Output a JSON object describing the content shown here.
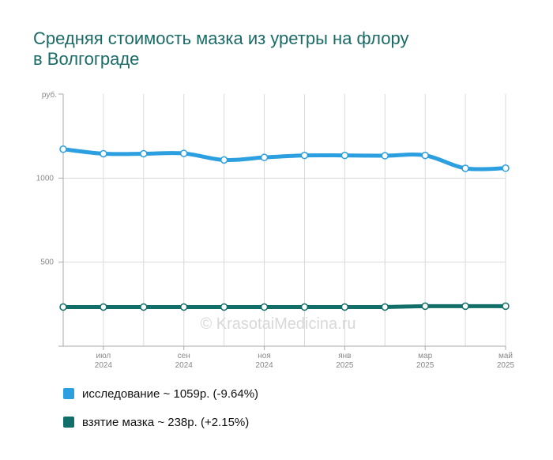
{
  "chart_data": {
    "type": "line",
    "title_lines": [
      "Средняя стоимость мазка из уретры на флору",
      "в Волгограде"
    ],
    "ylabel": "руб.",
    "ylim": [
      0,
      1500
    ],
    "yticks": [
      500,
      1000
    ],
    "grid": true,
    "legend_position": "bottom-left",
    "x_ticks": [
      {
        "index": 1,
        "month": "июл",
        "year": "2024"
      },
      {
        "index": 3,
        "month": "сен",
        "year": "2024"
      },
      {
        "index": 5,
        "month": "ноя",
        "year": "2024"
      },
      {
        "index": 7,
        "month": "янв",
        "year": "2025"
      },
      {
        "index": 9,
        "month": "мар",
        "year": "2025"
      },
      {
        "index": 11,
        "month": "май",
        "year": "2025"
      }
    ],
    "point_count": 12,
    "series": [
      {
        "name": "исследование",
        "color": "#2b9fe0",
        "legend": "исследование ~ 1059р. (-9.64%)",
        "values": [
          1172,
          1145,
          1145,
          1147,
          1108,
          1123,
          1135,
          1135,
          1133,
          1135,
          1058,
          1059
        ]
      },
      {
        "name": "взятие мазка",
        "color": "#116e68",
        "legend": "взятие мазка ~ 238р. (+2.15%)",
        "values": [
          233,
          233,
          233,
          233,
          233,
          233,
          233,
          233,
          233,
          238,
          238,
          238
        ]
      }
    ],
    "watermark": "© KrasotaiMedicina.ru"
  }
}
